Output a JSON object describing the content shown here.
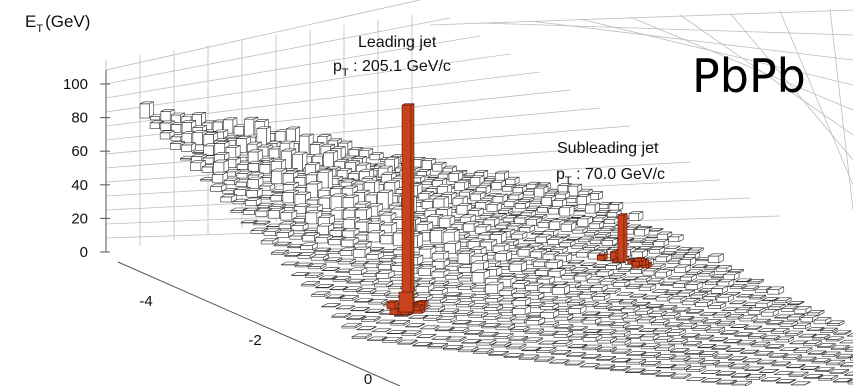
{
  "chart_data": {
    "type": "lego",
    "collision_label": "PbPb",
    "zaxis": {
      "label_main": "E",
      "label_sub": "T",
      "label_unit": "(GeV)",
      "ticks": [
        0,
        20,
        40,
        60,
        80,
        100
      ],
      "range": [
        0,
        110
      ]
    },
    "xaxis": {
      "ticks": [
        -4,
        -2,
        0
      ]
    },
    "jets": [
      {
        "id": "leading",
        "title": "Leading jet",
        "pt_prefix": "p",
        "pt_sub": "T",
        "pt_value": " : 205.1 GeV/c",
        "peak_et": 88,
        "color": "#c8431b"
      },
      {
        "id": "subleading",
        "title": "Subleading jet",
        "pt_prefix": "p",
        "pt_sub": "T",
        "pt_value": " : 70.0 GeV/c",
        "peak_et": 20,
        "color": "#c8431b"
      }
    ],
    "grid": true,
    "bar_color": "#ffffff",
    "bar_edge": "#333333"
  }
}
